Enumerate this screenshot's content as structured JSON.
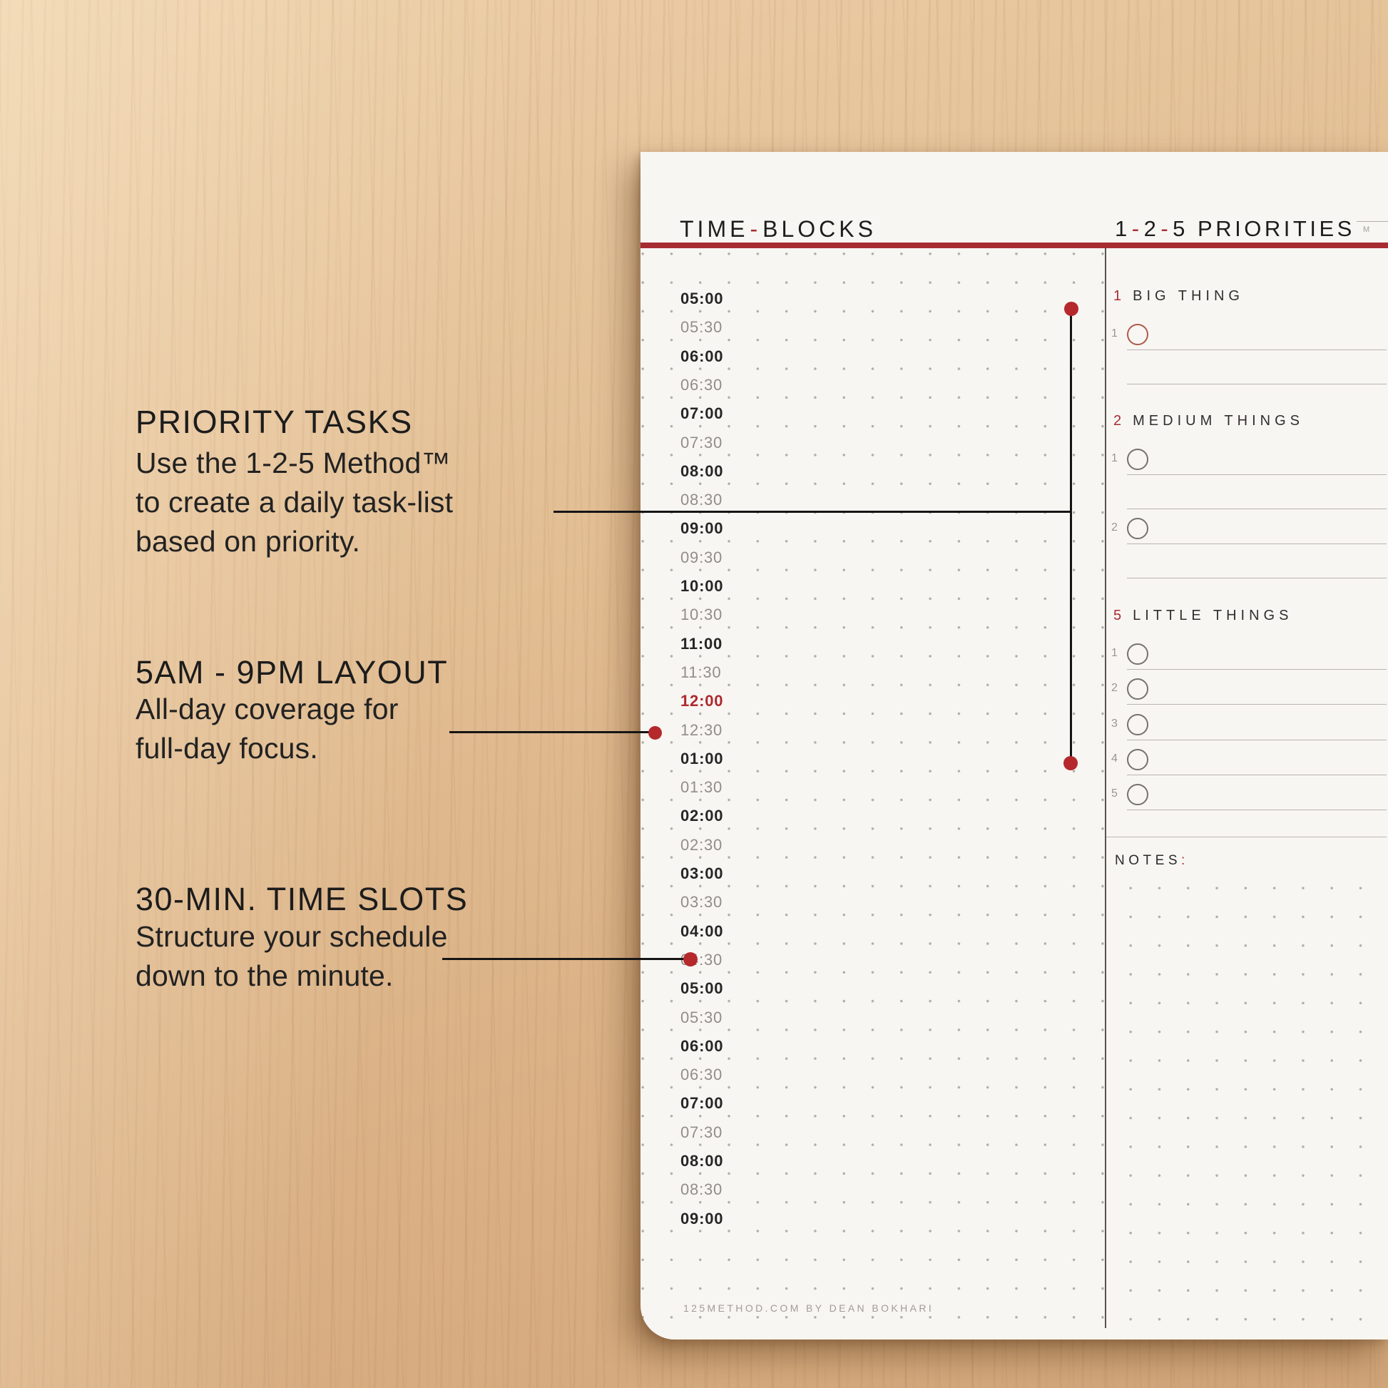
{
  "colors": {
    "accent_red": "#a72c32",
    "dot_red": "#b5282b",
    "page": "#f8f6f3"
  },
  "annotations": [
    {
      "title": "PRIORITY TASKS",
      "body": [
        "Use the 1-2-5 Method™",
        "to create a daily task-list",
        "based on priority."
      ]
    },
    {
      "title": "5AM - 9PM LAYOUT",
      "body": [
        "All-day coverage for",
        "full-day focus."
      ]
    },
    {
      "title": "30-MIN. TIME SLOTS",
      "body": [
        "Structure your schedule",
        "down to the minute."
      ]
    }
  ],
  "planner": {
    "time_blocks": {
      "title": "TIME-BLOCKS",
      "slots": [
        {
          "label": "05:00",
          "style": "hour"
        },
        {
          "label": "05:30",
          "style": "half"
        },
        {
          "label": "06:00",
          "style": "hour"
        },
        {
          "label": "06:30",
          "style": "half"
        },
        {
          "label": "07:00",
          "style": "hour"
        },
        {
          "label": "07:30",
          "style": "half"
        },
        {
          "label": "08:00",
          "style": "hour"
        },
        {
          "label": "08:30",
          "style": "half"
        },
        {
          "label": "09:00",
          "style": "hour"
        },
        {
          "label": "09:30",
          "style": "half"
        },
        {
          "label": "10:00",
          "style": "hour"
        },
        {
          "label": "10:30",
          "style": "half"
        },
        {
          "label": "11:00",
          "style": "hour"
        },
        {
          "label": "11:30",
          "style": "half"
        },
        {
          "label": "12:00",
          "style": "noon"
        },
        {
          "label": "12:30",
          "style": "half"
        },
        {
          "label": "01:00",
          "style": "hour"
        },
        {
          "label": "01:30",
          "style": "half"
        },
        {
          "label": "02:00",
          "style": "hour"
        },
        {
          "label": "02:30",
          "style": "half"
        },
        {
          "label": "03:00",
          "style": "hour"
        },
        {
          "label": "03:30",
          "style": "half"
        },
        {
          "label": "04:00",
          "style": "hour"
        },
        {
          "label": "04:30",
          "style": "half"
        },
        {
          "label": "05:00",
          "style": "hour"
        },
        {
          "label": "05:30",
          "style": "half"
        },
        {
          "label": "06:00",
          "style": "hour"
        },
        {
          "label": "06:30",
          "style": "half"
        },
        {
          "label": "07:00",
          "style": "hour"
        },
        {
          "label": "07:30",
          "style": "half"
        },
        {
          "label": "08:00",
          "style": "hour"
        },
        {
          "label": "08:30",
          "style": "half"
        },
        {
          "label": "09:00",
          "style": "hour"
        }
      ]
    },
    "priorities": {
      "title": "1-2-5 PRIORITIES",
      "sections": [
        {
          "number": "1",
          "label": "BIG THING",
          "items": [
            "1"
          ],
          "circle_accent": true,
          "extra_line_after_item": true
        },
        {
          "number": "2",
          "label": "MEDIUM THINGS",
          "items": [
            "1",
            "2"
          ],
          "circle_accent": false,
          "extra_line_after_item": true
        },
        {
          "number": "5",
          "label": "LITTLE THINGS",
          "items": [
            "1",
            "2",
            "3",
            "4",
            "5"
          ],
          "circle_accent": false,
          "extra_line_after_item": false
        }
      ]
    },
    "notes": {
      "label": "NOTES:"
    },
    "day_strip": "M",
    "footer": "125METHOD.COM BY DEAN BOKHARI"
  }
}
